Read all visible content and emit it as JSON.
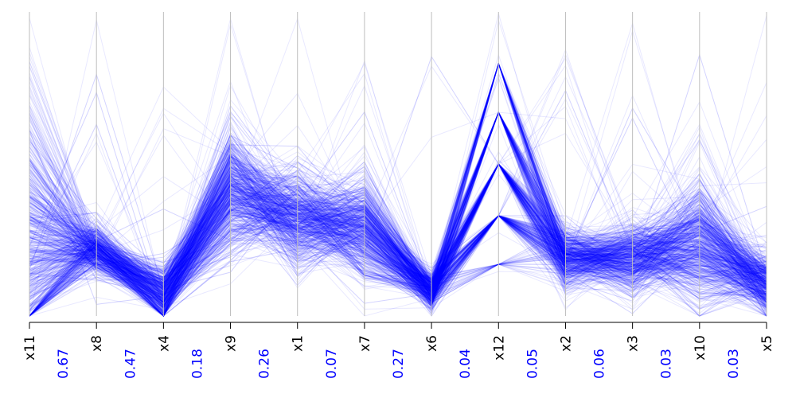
{
  "chart_data": {
    "type": "parallel-coordinates",
    "title": "",
    "axes": [
      "x11",
      "x8",
      "x4",
      "x9",
      "x1",
      "x7",
      "x6",
      "x12",
      "x2",
      "x3",
      "x10",
      "x5"
    ],
    "adjacent_correlations": [
      "0.67",
      "0.47",
      "0.18",
      "0.26",
      "0.07",
      "0.27",
      "0.04",
      "0.05",
      "0.06",
      "0.03",
      "0.03"
    ],
    "value_range": [
      0,
      1
    ],
    "line_color": "#0000ff",
    "axis_color": "#bebebe",
    "label_color": "#000000",
    "correlation_color": "#0000ff",
    "median_profile": [
      0.22,
      0.22,
      0.07,
      0.42,
      0.32,
      0.29,
      0.08,
      0.57,
      0.19,
      0.19,
      0.24,
      0.1
    ],
    "spread_profile": [
      0.23,
      0.04,
      0.05,
      0.1,
      0.08,
      0.09,
      0.03,
      0.16,
      0.05,
      0.06,
      0.1,
      0.05
    ],
    "axis12_levels": [
      0.17,
      0.33,
      0.5,
      0.67,
      0.83
    ],
    "grid": false,
    "tick_marks": "bottom"
  }
}
